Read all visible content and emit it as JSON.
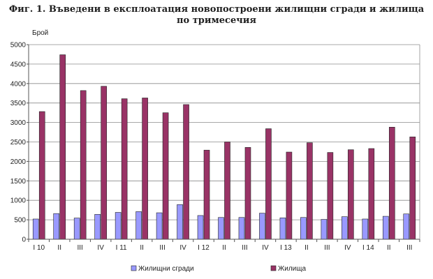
{
  "chart_data": {
    "type": "bar",
    "title_line1": "Фиг. 1. Въведени в експлоатация новопостроени жилищни сгради и жилища",
    "title_line2": "по тримесечия",
    "ylabel": "Брой",
    "xlabel": "",
    "ylim": [
      0,
      5000
    ],
    "yticks": [
      0,
      500,
      1000,
      1500,
      2000,
      2500,
      3000,
      3500,
      4000,
      4500,
      5000
    ],
    "grid": true,
    "legend_position": "bottom",
    "categories": [
      "І 10",
      "ІІ",
      "ІІІ",
      "ІV",
      "І 11",
      "ІІ",
      "ІІІ",
      "ІV",
      "І 12",
      "ІІ",
      "ІІІ",
      "ІV",
      "І 13",
      "ІІ",
      "ІІІ",
      "ІV",
      "І 14",
      "ІІ",
      "ІІІ"
    ],
    "series": [
      {
        "name": "Жилищни сгради",
        "color": "#9999ff",
        "values": [
          520,
          660,
          545,
          640,
          690,
          710,
          680,
          890,
          610,
          560,
          560,
          670,
          550,
          560,
          510,
          580,
          520,
          590,
          650
        ]
      },
      {
        "name": "Жилища",
        "color": "#993366",
        "values": [
          3280,
          4740,
          3820,
          3930,
          3610,
          3630,
          3250,
          3460,
          2290,
          2500,
          2360,
          2840,
          2240,
          2480,
          2230,
          2300,
          2330,
          2880,
          2630
        ]
      }
    ]
  }
}
